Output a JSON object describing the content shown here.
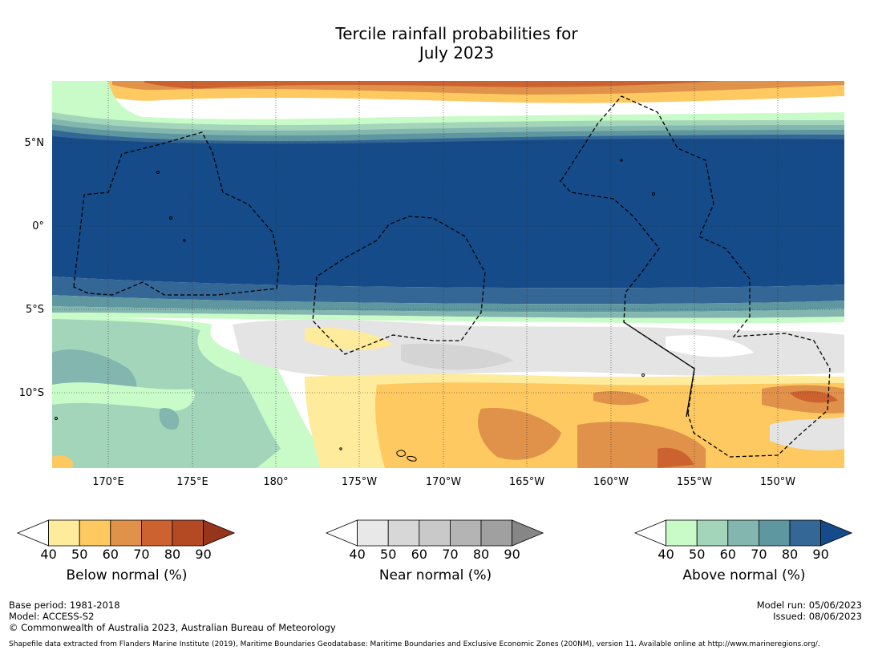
{
  "title": {
    "line1": "Tercile rainfall probabilities for",
    "line2": "July 2023"
  },
  "map": {
    "lat_labels": [
      "5°N",
      "0°",
      "5°S",
      "10°S"
    ],
    "lon_labels": [
      "170°E",
      "175°E",
      "180°",
      "175°W",
      "170°W",
      "165°W",
      "160°W",
      "155°W",
      "150°W"
    ],
    "extent": {
      "lon_min": 166,
      "lon_max": 213.3,
      "lat_min": -14.5,
      "lat_max": 8.5
    }
  },
  "colorbars": [
    {
      "name": "below-normal",
      "label": "Below normal (%)",
      "ticks": [
        "40",
        "50",
        "60",
        "70",
        "80",
        "90"
      ],
      "colors": [
        "#ffffff",
        "#ffeb9c",
        "#fec961",
        "#e0914a",
        "#cc6230",
        "#b34a24",
        "#96341c"
      ]
    },
    {
      "name": "near-normal",
      "label": "Near normal (%)",
      "ticks": [
        "40",
        "50",
        "60",
        "70",
        "80",
        "90"
      ],
      "colors": [
        "#ffffff",
        "#e8e8e8",
        "#d7d7d7",
        "#c9c9c9",
        "#b4b4b4",
        "#a0a0a0",
        "#868686"
      ]
    },
    {
      "name": "above-normal",
      "label": "Above normal (%)",
      "ticks": [
        "40",
        "50",
        "60",
        "70",
        "80",
        "90"
      ],
      "colors": [
        "#ffffff",
        "#c8fbc8",
        "#a2d5b9",
        "#82b6ae",
        "#5f97a0",
        "#346696",
        "#144b88"
      ]
    }
  ],
  "footer": {
    "base_period": "Base period: 1981-2018",
    "model": "Model: ACCESS-S2",
    "copyright": "© Commonwealth of Australia 2023, Australian Bureau of Meteorology",
    "model_run": "Model run: 05/06/2023",
    "issued": "Issued: 08/06/2023",
    "shapefile": "Shapefile data extracted from Flanders Marine Institute (2019), Maritime Boundaries Geodatabase: Maritime Boundaries and Exclusive Economic Zones (200NM), version 11. Available online at http://www.marineregions.org/."
  }
}
